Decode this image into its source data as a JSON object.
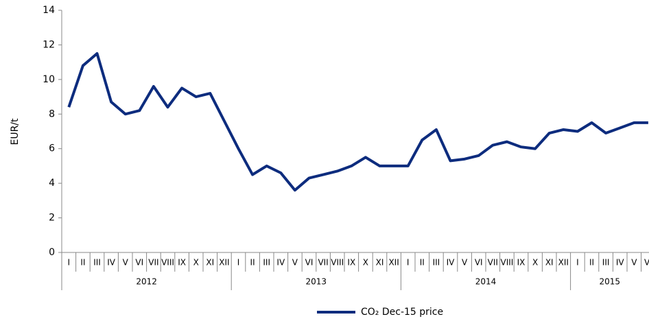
{
  "chart_data": {
    "type": "line",
    "y_label": "EUR/t",
    "years": [
      "2012",
      "2013",
      "2014",
      "2015"
    ],
    "categories": [
      "I",
      "II",
      "III",
      "IV",
      "V",
      "VI",
      "VII",
      "VIII",
      "IX",
      "X",
      "XI",
      "XII",
      "I",
      "II",
      "III",
      "IV",
      "V",
      "VI",
      "VII",
      "VIII",
      "IX",
      "X",
      "XI",
      "XII",
      "I",
      "II",
      "III",
      "IV",
      "V",
      "VI",
      "VII",
      "VIII",
      "IX",
      "X",
      "XI",
      "XII",
      "I",
      "II",
      "III",
      "IV",
      "V",
      "VI"
    ],
    "series": [
      {
        "name": "CO₂ Dec-15 price",
        "color": "#0d2c7e",
        "values": [
          8.4,
          10.8,
          11.5,
          8.7,
          8.0,
          8.2,
          9.6,
          8.4,
          9.5,
          9.0,
          9.2,
          7.6,
          6.0,
          4.5,
          5.0,
          4.6,
          3.6,
          4.3,
          4.5,
          4.7,
          5.0,
          5.5,
          5.0,
          5.0,
          5.0,
          6.5,
          7.1,
          5.3,
          5.4,
          5.6,
          6.2,
          6.4,
          6.1,
          6.0,
          6.9,
          7.1,
          7.0,
          7.5,
          6.9,
          7.2,
          7.5,
          7.5
        ]
      }
    ],
    "ylim": [
      0,
      14
    ],
    "yticks": [
      0,
      2,
      4,
      6,
      8,
      10,
      12,
      14
    ],
    "grid": false,
    "legend": "bottom"
  }
}
